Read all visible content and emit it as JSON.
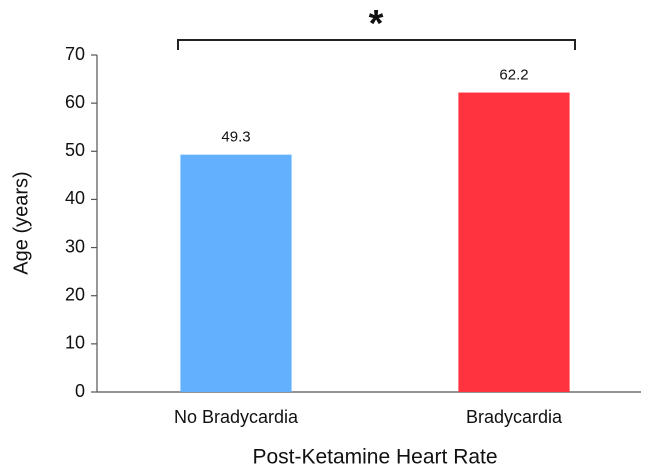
{
  "chart_data": {
    "type": "bar",
    "categories": [
      "No Bradycardia",
      "Bradycardia"
    ],
    "values": [
      49.3,
      62.2
    ],
    "colors": [
      "#63b0ff",
      "#ff3340"
    ],
    "ylabel": "Age (years)",
    "xlabel": "Post-Ketamine Heart Rate",
    "annotation": "*",
    "ylim": [
      0,
      70
    ],
    "yticks": [
      0,
      10,
      20,
      30,
      40,
      50,
      60,
      70
    ],
    "grid": false
  }
}
